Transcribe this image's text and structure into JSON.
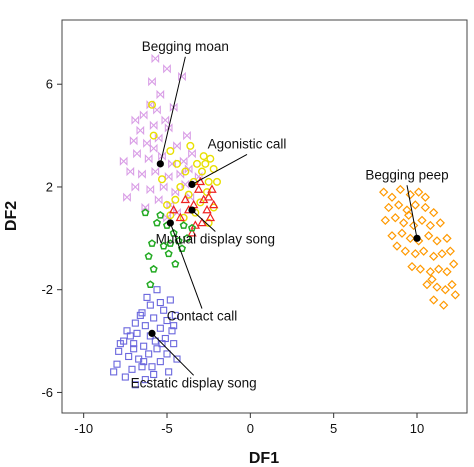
{
  "chart_data": {
    "type": "scatter",
    "xlabel": "DF1",
    "ylabel": "DF2",
    "xlim": [
      -11.3,
      13.0
    ],
    "ylim": [
      -6.8,
      8.5
    ],
    "x_ticks": [
      -10,
      -5,
      0,
      5,
      10
    ],
    "y_ticks": [
      -6,
      -2,
      2,
      6
    ],
    "x_tick_labels": [
      "-10",
      "-5",
      "0",
      "5",
      "10"
    ],
    "y_tick_labels": [
      "-6",
      "-2",
      "2",
      "6"
    ],
    "grid": false,
    "series": [
      {
        "marker": "bowtie",
        "color": "#d99ee6",
        "points": [
          [
            -5.7,
            7.0
          ],
          [
            -5.9,
            6.1
          ],
          [
            -5.4,
            5.6
          ],
          [
            -6.0,
            5.2
          ],
          [
            -6.4,
            4.8
          ],
          [
            -5.8,
            4.4
          ],
          [
            -6.6,
            4.2
          ],
          [
            -7.0,
            3.8
          ],
          [
            -6.2,
            3.7
          ],
          [
            -5.5,
            3.9
          ],
          [
            -4.9,
            4.3
          ],
          [
            -4.4,
            3.6
          ],
          [
            -6.8,
            3.3
          ],
          [
            -7.6,
            3.0
          ],
          [
            -6.1,
            3.1
          ],
          [
            -5.3,
            3.2
          ],
          [
            -4.7,
            2.9
          ],
          [
            -4.0,
            3.0
          ],
          [
            -3.5,
            3.3
          ],
          [
            -7.2,
            2.6
          ],
          [
            -6.5,
            2.5
          ],
          [
            -5.7,
            2.6
          ],
          [
            -4.9,
            2.4
          ],
          [
            -4.2,
            2.5
          ],
          [
            -3.7,
            2.7
          ],
          [
            -6.9,
            2.0
          ],
          [
            -6.0,
            1.9
          ],
          [
            -5.2,
            2.0
          ],
          [
            -4.5,
            1.8
          ],
          [
            -3.9,
            2.1
          ],
          [
            -5.5,
            1.5
          ],
          [
            -4.8,
            1.3
          ],
          [
            -6.3,
            1.2
          ],
          [
            -5.0,
            0.8
          ],
          [
            -4.4,
            1.0
          ],
          [
            -3.6,
            1.6
          ],
          [
            -4.1,
            6.3
          ],
          [
            -5.0,
            6.6
          ],
          [
            -5.6,
            5.0
          ],
          [
            -4.6,
            5.1
          ],
          [
            -5.1,
            4.6
          ],
          [
            -6.9,
            4.6
          ],
          [
            -3.8,
            4.0
          ],
          [
            -7.4,
            1.6
          ],
          [
            -3.1,
            2.4
          ],
          [
            -5.8,
            3.5
          ]
        ]
      },
      {
        "marker": "circle",
        "color": "#e8e000",
        "points": [
          [
            -5.9,
            5.2
          ],
          [
            -5.8,
            4.0
          ],
          [
            -4.8,
            3.4
          ],
          [
            -3.6,
            3.6
          ],
          [
            -3.2,
            2.9
          ],
          [
            -2.9,
            2.6
          ],
          [
            -2.5,
            2.2
          ],
          [
            -2.2,
            2.7
          ],
          [
            -3.4,
            2.2
          ],
          [
            -3.9,
            2.6
          ],
          [
            -4.2,
            2.0
          ],
          [
            -2.6,
            1.8
          ],
          [
            -3.0,
            1.4
          ],
          [
            -2.2,
            1.2
          ],
          [
            -3.7,
            1.7
          ],
          [
            -4.5,
            1.5
          ],
          [
            -5.0,
            1.3
          ],
          [
            -2.5,
            0.6
          ],
          [
            -4.0,
            0.8
          ],
          [
            -3.3,
            1.0
          ],
          [
            -2.8,
            3.2
          ],
          [
            -2.4,
            3.1
          ],
          [
            -4.4,
            2.9
          ],
          [
            -5.3,
            2.3
          ],
          [
            -2.0,
            2.2
          ],
          [
            -4.8,
            0.9
          ],
          [
            -2.7,
            2.9
          ]
        ]
      },
      {
        "marker": "triangle",
        "color": "#ee2222",
        "points": [
          [
            -3.1,
            1.9
          ],
          [
            -2.8,
            1.5
          ],
          [
            -2.6,
            1.1
          ],
          [
            -3.4,
            1.3
          ],
          [
            -3.7,
            1.1
          ],
          [
            -2.4,
            0.8
          ],
          [
            -2.9,
            0.6
          ],
          [
            -3.3,
            0.5
          ],
          [
            -2.2,
            1.3
          ],
          [
            -2.5,
            1.6
          ],
          [
            -3.9,
            1.5
          ],
          [
            -3.0,
            2.2
          ],
          [
            -2.3,
            1.9
          ],
          [
            -3.5,
            0.2
          ],
          [
            -4.2,
            0.8
          ],
          [
            -4.6,
            1.1
          ]
        ]
      },
      {
        "marker": "pentagon",
        "color": "#22aa22",
        "points": [
          [
            -6.3,
            1.0
          ],
          [
            -5.6,
            0.6
          ],
          [
            -5.0,
            0.5
          ],
          [
            -4.6,
            0.2
          ],
          [
            -4.3,
            -0.1
          ],
          [
            -4.8,
            -0.2
          ],
          [
            -5.2,
            -0.3
          ],
          [
            -4.1,
            -0.4
          ],
          [
            -5.9,
            -0.2
          ],
          [
            -6.1,
            -0.7
          ],
          [
            -4.9,
            -0.6
          ],
          [
            -4.5,
            -1.0
          ],
          [
            -5.8,
            -1.2
          ],
          [
            -4.0,
            0.5
          ],
          [
            -3.8,
            0.0
          ],
          [
            -6.0,
            -1.8
          ],
          [
            -3.5,
            0.4
          ],
          [
            -5.4,
            0.9
          ]
        ]
      },
      {
        "marker": "square",
        "color": "#6a66dd",
        "points": [
          [
            -5.6,
            -2.0
          ],
          [
            -4.8,
            -2.4
          ],
          [
            -5.2,
            -2.8
          ],
          [
            -6.0,
            -2.6
          ],
          [
            -6.5,
            -2.9
          ],
          [
            -5.8,
            -3.1
          ],
          [
            -5.0,
            -3.2
          ],
          [
            -4.5,
            -3.0
          ],
          [
            -6.9,
            -3.3
          ],
          [
            -6.3,
            -3.4
          ],
          [
            -5.4,
            -3.5
          ],
          [
            -4.7,
            -3.6
          ],
          [
            -7.4,
            -3.6
          ],
          [
            -6.8,
            -3.7
          ],
          [
            -6.0,
            -3.8
          ],
          [
            -5.1,
            -3.9
          ],
          [
            -4.6,
            -4.1
          ],
          [
            -7.6,
            -4.0
          ],
          [
            -7.0,
            -4.1
          ],
          [
            -6.4,
            -4.2
          ],
          [
            -5.6,
            -4.3
          ],
          [
            -5.0,
            -4.5
          ],
          [
            -7.9,
            -4.4
          ],
          [
            -7.3,
            -4.6
          ],
          [
            -6.7,
            -4.7
          ],
          [
            -6.1,
            -4.5
          ],
          [
            -5.4,
            -4.8
          ],
          [
            -7.1,
            -5.1
          ],
          [
            -6.5,
            -5.0
          ],
          [
            -5.8,
            -5.3
          ],
          [
            -8.0,
            -4.9
          ],
          [
            -7.5,
            -5.4
          ],
          [
            -6.9,
            -5.7
          ],
          [
            -6.3,
            -5.5
          ],
          [
            -8.2,
            -5.2
          ],
          [
            -4.4,
            -4.7
          ],
          [
            -4.9,
            -5.2
          ],
          [
            -5.9,
            -5.0
          ],
          [
            -6.2,
            -2.3
          ],
          [
            -5.4,
            -2.5
          ],
          [
            -7.0,
            -4.3
          ],
          [
            -5.7,
            -4.0
          ],
          [
            -6.6,
            -3.0
          ],
          [
            -7.8,
            -4.1
          ],
          [
            -4.6,
            -3.4
          ],
          [
            -5.3,
            -4.1
          ],
          [
            -6.4,
            -4.8
          ],
          [
            -7.2,
            -3.8
          ]
        ]
      },
      {
        "marker": "diamond",
        "color": "#ff9900",
        "points": [
          [
            8.0,
            1.8
          ],
          [
            8.5,
            1.6
          ],
          [
            9.0,
            1.9
          ],
          [
            9.6,
            1.7
          ],
          [
            10.1,
            1.8
          ],
          [
            8.3,
            1.2
          ],
          [
            8.9,
            1.3
          ],
          [
            9.4,
            1.1
          ],
          [
            9.9,
            1.3
          ],
          [
            10.5,
            1.2
          ],
          [
            11.0,
            1.0
          ],
          [
            8.1,
            0.7
          ],
          [
            8.7,
            0.8
          ],
          [
            9.2,
            0.6
          ],
          [
            9.8,
            0.5
          ],
          [
            10.3,
            0.7
          ],
          [
            10.8,
            0.5
          ],
          [
            11.4,
            0.6
          ],
          [
            8.5,
            0.1
          ],
          [
            9.1,
            0.2
          ],
          [
            9.6,
            0.0
          ],
          [
            10.1,
            -0.1
          ],
          [
            10.7,
            0.1
          ],
          [
            11.2,
            -0.1
          ],
          [
            11.8,
            0.0
          ],
          [
            9.3,
            -0.5
          ],
          [
            9.9,
            -0.6
          ],
          [
            10.4,
            -0.5
          ],
          [
            11.0,
            -0.7
          ],
          [
            11.5,
            -0.6
          ],
          [
            12.0,
            -0.5
          ],
          [
            9.7,
            -1.1
          ],
          [
            10.2,
            -1.2
          ],
          [
            10.8,
            -1.3
          ],
          [
            11.3,
            -1.2
          ],
          [
            11.8,
            -1.3
          ],
          [
            10.6,
            -1.8
          ],
          [
            11.2,
            -1.9
          ],
          [
            11.7,
            -2.0
          ],
          [
            12.1,
            -1.8
          ],
          [
            11.0,
            -2.4
          ],
          [
            11.6,
            -2.6
          ],
          [
            10.9,
            -1.6
          ],
          [
            12.2,
            -1.0
          ],
          [
            8.8,
            -0.3
          ],
          [
            10.5,
            1.6
          ],
          [
            9.5,
            0.9
          ],
          [
            12.3,
            -2.2
          ]
        ]
      }
    ],
    "centroids": [
      {
        "label": "Begging moan",
        "x": -5.4,
        "y": 2.9,
        "label_x": -3.9,
        "label_y": 7.3
      },
      {
        "label": "Agonistic call",
        "x": -3.5,
        "y": 2.1,
        "label_x": -0.2,
        "label_y": 3.5
      },
      {
        "label": "Mutual display song",
        "x": -3.5,
        "y": 1.1,
        "label_x": -2.1,
        "label_y": -0.2
      },
      {
        "label": "Contact call",
        "x": -4.8,
        "y": 0.6,
        "label_x": -2.9,
        "label_y": -3.2
      },
      {
        "label": "Ecstatic display song",
        "x": -5.9,
        "y": -3.7,
        "label_x": -3.4,
        "label_y": -5.8
      },
      {
        "label": "Begging peep",
        "x": 10.0,
        "y": 0.0,
        "label_x": 9.4,
        "label_y": 2.3
      }
    ]
  }
}
